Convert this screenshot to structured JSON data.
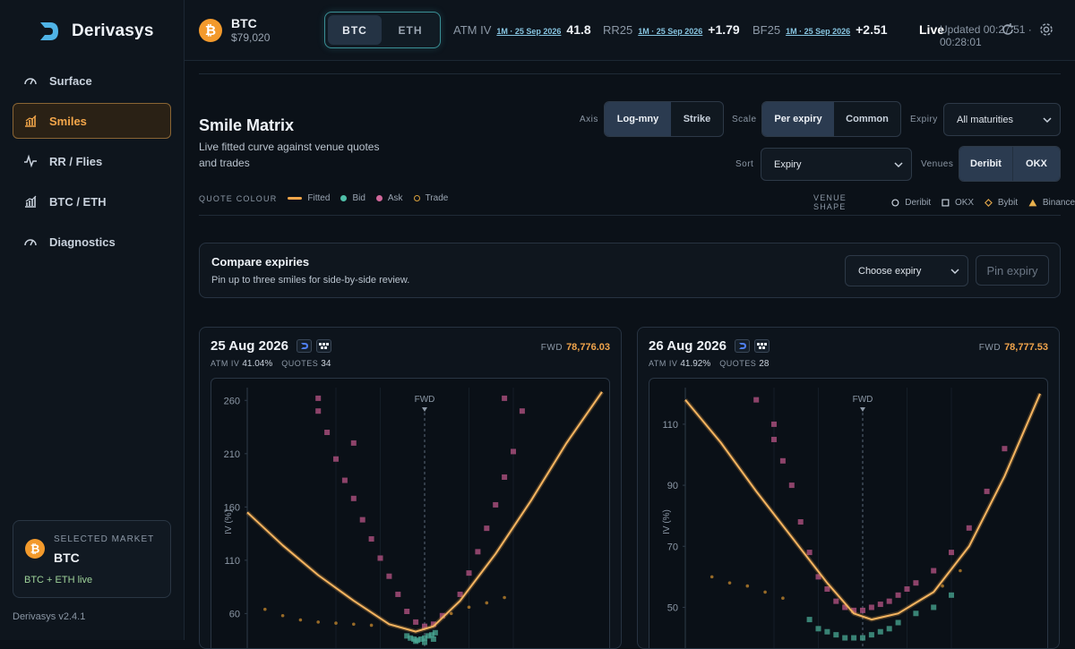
{
  "app": {
    "name": "Derivasys",
    "version": "Derivasys v2.4.1"
  },
  "sidebar": {
    "items": [
      {
        "label": "Surface",
        "icon": "gauge-icon",
        "active": false
      },
      {
        "label": "Smiles",
        "icon": "bar-chart-icon",
        "active": true
      },
      {
        "label": "RR / Flies",
        "icon": "pulse-icon",
        "active": false
      },
      {
        "label": "BTC / ETH",
        "icon": "bar-chart-icon",
        "active": false
      },
      {
        "label": "Diagnostics",
        "icon": "gauge-icon",
        "active": false
      }
    ],
    "market": {
      "label": "SELECTED MARKET",
      "symbol": "BTC",
      "status": "BTC + ETH live"
    }
  },
  "topbar": {
    "asset": {
      "name": "BTC",
      "price": "$79,020"
    },
    "toggle": [
      {
        "label": "BTC",
        "active": true
      },
      {
        "label": "ETH",
        "active": false
      }
    ],
    "metrics": [
      {
        "name": "ATM IV",
        "tag": "1M · 25 Sep 2026",
        "value": "41.8"
      },
      {
        "name": "RR25",
        "tag": "1M · 25 Sep 2026",
        "value": "+1.79"
      },
      {
        "name": "BF25",
        "tag": "1M · 25 Sep 2026",
        "value": "+2.51"
      }
    ],
    "live": "Live",
    "updated": "Updated 00:27:51 · 00:28:01"
  },
  "header": {
    "title": "Smile Matrix",
    "subtitle": "Live fitted curve against venue quotes and trades"
  },
  "controls": {
    "axis": {
      "label": "Axis",
      "options": [
        "Log-mny",
        "Strike"
      ],
      "selected": "Log-mny"
    },
    "scale": {
      "label": "Scale",
      "options": [
        "Per expiry",
        "Common"
      ],
      "selected": "Per expiry"
    },
    "expiry": {
      "label": "Expiry",
      "value": "All maturities"
    },
    "sort": {
      "label": "Sort",
      "value": "Expiry"
    },
    "venues": {
      "label": "Venues",
      "options": [
        "Deribit",
        "OKX"
      ]
    }
  },
  "legend": {
    "quote_title": "QUOTE COLOUR",
    "quote": [
      {
        "label": "Fitted",
        "color": "#f3a64a"
      },
      {
        "label": "Bid",
        "color": "#4fbfa8"
      },
      {
        "label": "Ask",
        "color": "#d0679a"
      },
      {
        "label": "Trade",
        "color": "#d9a13c"
      }
    ],
    "shape_title": "VENUE SHAPE",
    "shape": [
      {
        "label": "Deribit",
        "shape": "circle"
      },
      {
        "label": "OKX",
        "shape": "square"
      },
      {
        "label": "Bybit",
        "shape": "diamond"
      },
      {
        "label": "Binance",
        "shape": "triangle"
      }
    ]
  },
  "compare": {
    "title": "Compare expiries",
    "subtitle": "Pin up to three smiles for side-by-side review.",
    "select": "Choose expiry",
    "pin": "Pin expiry"
  },
  "chart_data": [
    {
      "type": "scatter",
      "title": "25 Aug 2026",
      "atm_iv": "41.04%",
      "quotes": "34",
      "fwd": "78,776.03",
      "ylabel": "IV (%)",
      "marker": "FWD",
      "yticks": [
        260,
        210,
        160,
        110,
        60
      ],
      "ylim": [
        20,
        272
      ],
      "xlim": [
        -1,
        1
      ],
      "fitted": {
        "x": [
          -1,
          -0.8,
          -0.6,
          -0.4,
          -0.2,
          -0.05,
          0.05,
          0.2,
          0.4,
          0.6,
          0.8,
          1
        ],
        "y": [
          155,
          124,
          96,
          72,
          50,
          43,
          48,
          72,
          116,
          166,
          220,
          268
        ]
      },
      "bid": {
        "x": [
          -0.1,
          -0.08,
          -0.06,
          -0.04,
          -0.02,
          0,
          0.02,
          0.04,
          0.06,
          -0.05,
          0.0,
          0.05
        ],
        "y": [
          39,
          37,
          36,
          35,
          36,
          37,
          39,
          40,
          42,
          34,
          33,
          36
        ]
      },
      "ask": {
        "x": [
          -0.6,
          -0.55,
          -0.5,
          -0.45,
          -0.4,
          -0.35,
          -0.3,
          -0.25,
          -0.2,
          -0.15,
          -0.1,
          -0.05,
          0.0,
          0.05,
          0.1,
          0.2,
          0.25,
          0.3,
          0.35,
          0.4,
          0.45,
          0.5,
          0.55,
          -0.6,
          -0.4,
          0.45
        ],
        "y": [
          262,
          230,
          205,
          185,
          168,
          148,
          130,
          112,
          95,
          78,
          62,
          52,
          48,
          50,
          58,
          78,
          98,
          118,
          140,
          162,
          188,
          212,
          250,
          250,
          220,
          262
        ]
      },
      "trade": {
        "x": [
          -0.9,
          -0.8,
          -0.7,
          -0.6,
          -0.5,
          -0.4,
          -0.3,
          0.15,
          0.25,
          0.35,
          0.45
        ],
        "y": [
          64,
          58,
          54,
          52,
          51,
          50,
          49,
          60,
          66,
          70,
          75
        ]
      }
    },
    {
      "type": "scatter",
      "title": "26 Aug 2026",
      "atm_iv": "41.92%",
      "quotes": "28",
      "fwd": "78,777.53",
      "ylabel": "IV (%)",
      "marker": "FWD",
      "yticks": [
        110,
        90,
        70,
        50
      ],
      "ylim": [
        34,
        122
      ],
      "xlim": [
        -1,
        1
      ],
      "fitted": {
        "x": [
          -1,
          -0.8,
          -0.6,
          -0.4,
          -0.2,
          -0.05,
          0.05,
          0.2,
          0.4,
          0.6,
          0.8,
          1
        ],
        "y": [
          118,
          104,
          88,
          73,
          58,
          48,
          46,
          48,
          55,
          70,
          93,
          120
        ]
      },
      "bid": {
        "x": [
          -0.3,
          -0.25,
          -0.2,
          -0.15,
          -0.1,
          -0.05,
          0,
          0.05,
          0.1,
          0.15,
          0.2,
          0.3,
          0.4,
          0.5
        ],
        "y": [
          46,
          43,
          42,
          41,
          40,
          40,
          40,
          41,
          42,
          43,
          45,
          48,
          50,
          54
        ]
      },
      "ask": {
        "x": [
          -0.6,
          -0.5,
          -0.4,
          -0.35,
          -0.3,
          -0.25,
          -0.2,
          -0.15,
          -0.1,
          -0.05,
          0,
          0.05,
          0.1,
          0.15,
          0.2,
          0.25,
          0.3,
          0.4,
          0.5,
          0.6,
          0.7,
          0.8,
          -0.5,
          -0.45
        ],
        "y": [
          118,
          105,
          90,
          78,
          68,
          60,
          56,
          52,
          50,
          49,
          49,
          50,
          51,
          52,
          54,
          56,
          58,
          62,
          68,
          76,
          88,
          102,
          110,
          98
        ]
      },
      "trade": {
        "x": [
          -0.85,
          -0.75,
          -0.65,
          -0.55,
          -0.45,
          0.45,
          0.55
        ],
        "y": [
          60,
          58,
          57,
          55,
          53,
          57,
          62
        ]
      }
    }
  ]
}
